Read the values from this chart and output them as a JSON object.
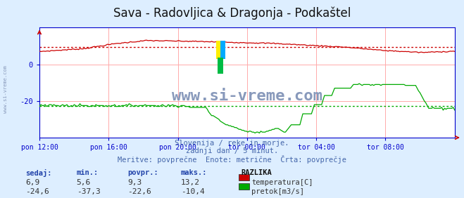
{
  "title": "Sava - Radovljica & Dragonja - Podkaštel",
  "title_fontsize": 12,
  "bg_color": "#ddeeff",
  "plot_bg_color": "#ffffff",
  "grid_color": "#ffaaaa",
  "grid_color_h": "#ffaaaa",
  "xlabel_ticks": [
    "pon 12:00",
    "pon 16:00",
    "pon 20:00",
    "tor 00:00",
    "tor 04:00",
    "tor 08:00"
  ],
  "tick_positions": [
    0.0,
    0.1667,
    0.3333,
    0.5,
    0.6667,
    0.8333
  ],
  "ylim": [
    -40,
    20
  ],
  "yticks": [
    -20,
    0
  ],
  "temp_color": "#cc0000",
  "flow_color": "#00aa00",
  "temp_avg": 9.3,
  "flow_avg": -22.6,
  "watermark": "www.si-vreme.com",
  "watermark_color": "#8899bb",
  "subtitle1": "Slovenija / reke in morje.",
  "subtitle2": "zadnji dan / 5 minut.",
  "subtitle3": "Meritve: povprečne  Enote: metrične  Črta: povprečje",
  "subtitle_color": "#4466aa",
  "table_header": [
    "sedaj:",
    "min.:",
    "povpr.:",
    "maks.:"
  ],
  "table_color": "#2244aa",
  "temp_row": [
    "6,9",
    "5,6",
    "9,3",
    "13,2"
  ],
  "flow_row": [
    "-24,6",
    "-37,3",
    "-22,6",
    "-10,4"
  ],
  "legend_labels": [
    "temperatura[C]",
    "pretok[m3/s]"
  ],
  "legend_colors": [
    "#cc0000",
    "#00aa00"
  ],
  "razlika_label": "RAZLIKA",
  "left_margin_text": "www.si-vreme.com",
  "axis_color": "#0000cc",
  "arrow_color": "#cc0000",
  "spine_color": "#0000cc",
  "logo_yellow": "#ffee00",
  "logo_blue": "#00aaff",
  "logo_green": "#00bb44"
}
